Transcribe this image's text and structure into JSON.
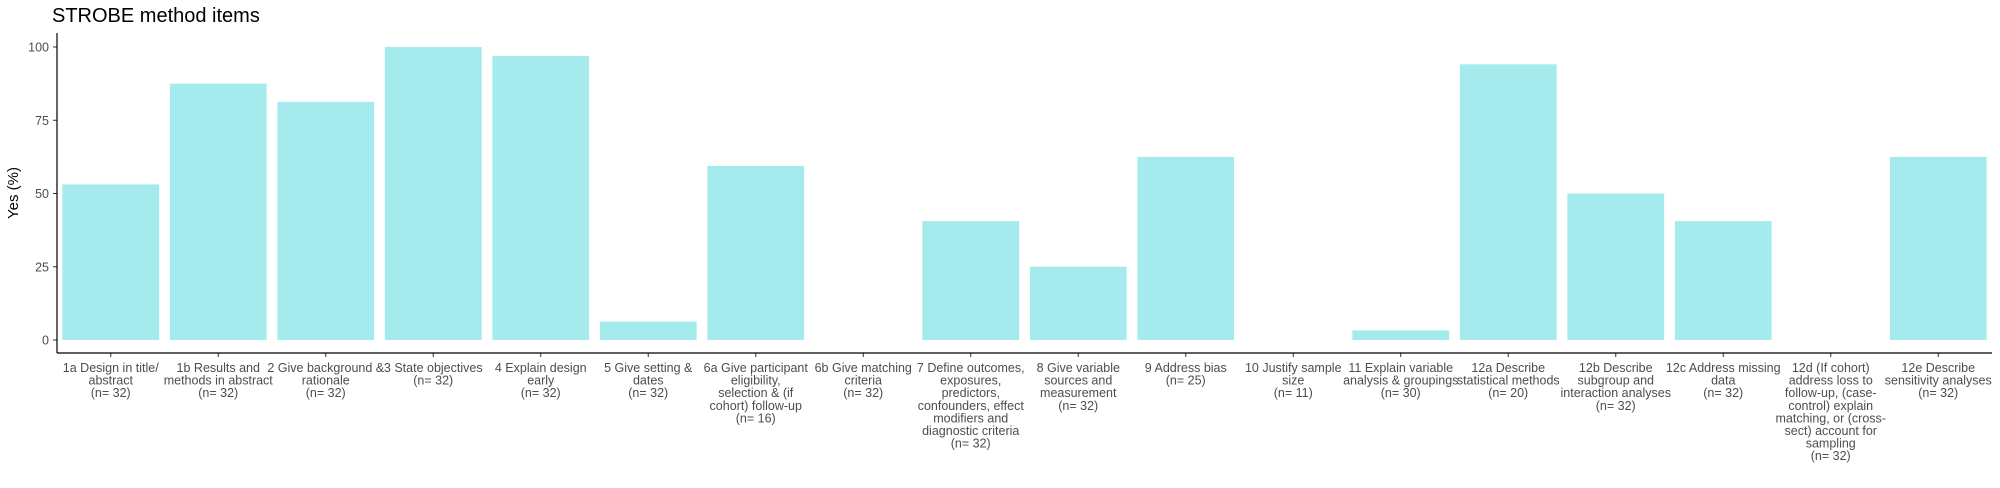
{
  "chart_data": {
    "type": "bar",
    "title": "STROBE method items",
    "xlabel": "",
    "ylabel": "Yes (%)",
    "ylim": [
      0,
      105
    ],
    "yticks": [
      0,
      25,
      50,
      75,
      100
    ],
    "grid": false,
    "bar_color": "#a5ebee",
    "categories": [
      "1a Design in title/ abstract (n= 32)",
      "1b Results and methods in abstract (n= 32)",
      "2 Give background & rationale (n= 32)",
      "3 State objectives (n= 32)",
      "4 Explain design early (n= 32)",
      "5 Give setting & dates (n= 32)",
      "6a Give participant eligibility, selection & (if cohort) follow-up (n= 16)",
      "6b Give matching criteria (n= 32)",
      "7 Define outcomes, exposures, predictors, confounders, effect modifiers and diagnostic criteria (n= 32)",
      "8 Give variable sources and measurement (n= 32)",
      "9 Address bias (n= 25)",
      "10 Justify sample size (n= 11)",
      "11 Explain variable analysis & groupings (n= 30)",
      "12a Describe statistical methods (n= 20)",
      "12b Describe subgroup and interaction analyses (n= 32)",
      "12c Address missing data (n= 32)",
      "12d (If cohort) address loss to follow-up, (case-control) explain matching, or (cross-sect) account for sampling (n= 32)",
      "12e Describe sensitivity analyses (n= 32)"
    ],
    "category_lines": [
      [
        "1a Design in title/",
        "abstract",
        "(n= 32)"
      ],
      [
        "1b Results and",
        "methods in abstract",
        "(n= 32)"
      ],
      [
        "2 Give background &",
        "rationale",
        "(n= 32)"
      ],
      [
        "3 State objectives",
        "(n= 32)"
      ],
      [
        "4 Explain design",
        "early",
        "(n= 32)"
      ],
      [
        "5 Give setting &",
        "dates",
        "(n= 32)"
      ],
      [
        "6a Give participant",
        "eligibility,",
        "selection & (if",
        "cohort) follow-up",
        "(n= 16)"
      ],
      [
        "6b Give matching",
        "criteria",
        "(n= 32)"
      ],
      [
        "7 Define outcomes,",
        "exposures,",
        "predictors,",
        "confounders, effect",
        "modifiers and",
        "diagnostic criteria",
        "(n= 32)"
      ],
      [
        "8 Give variable",
        "sources and",
        "measurement",
        "(n= 32)"
      ],
      [
        "9 Address bias",
        "(n= 25)"
      ],
      [
        "10 Justify sample",
        "size",
        "(n= 11)"
      ],
      [
        "11 Explain variable",
        "analysis & groupings",
        "(n= 30)"
      ],
      [
        "12a Describe",
        "statistical methods",
        "(n= 20)"
      ],
      [
        "12b Describe",
        "subgroup and",
        "interaction analyses",
        "(n= 32)"
      ],
      [
        "12c Address missing",
        "data",
        "(n= 32)"
      ],
      [
        "12d (If cohort)",
        "address loss to",
        "follow-up, (case-",
        "control) explain",
        "matching, or (cross-",
        "sect) account for",
        "sampling",
        "(n= 32)"
      ],
      [
        "12e Describe",
        "sensitivity analyses",
        "(n= 32)"
      ]
    ],
    "values": [
      53.1,
      87.5,
      81.3,
      100,
      96.9,
      6.3,
      59.4,
      0,
      40.6,
      25.0,
      62.5,
      0,
      3.3,
      94.1,
      50.0,
      40.6,
      0,
      62.5
    ]
  }
}
